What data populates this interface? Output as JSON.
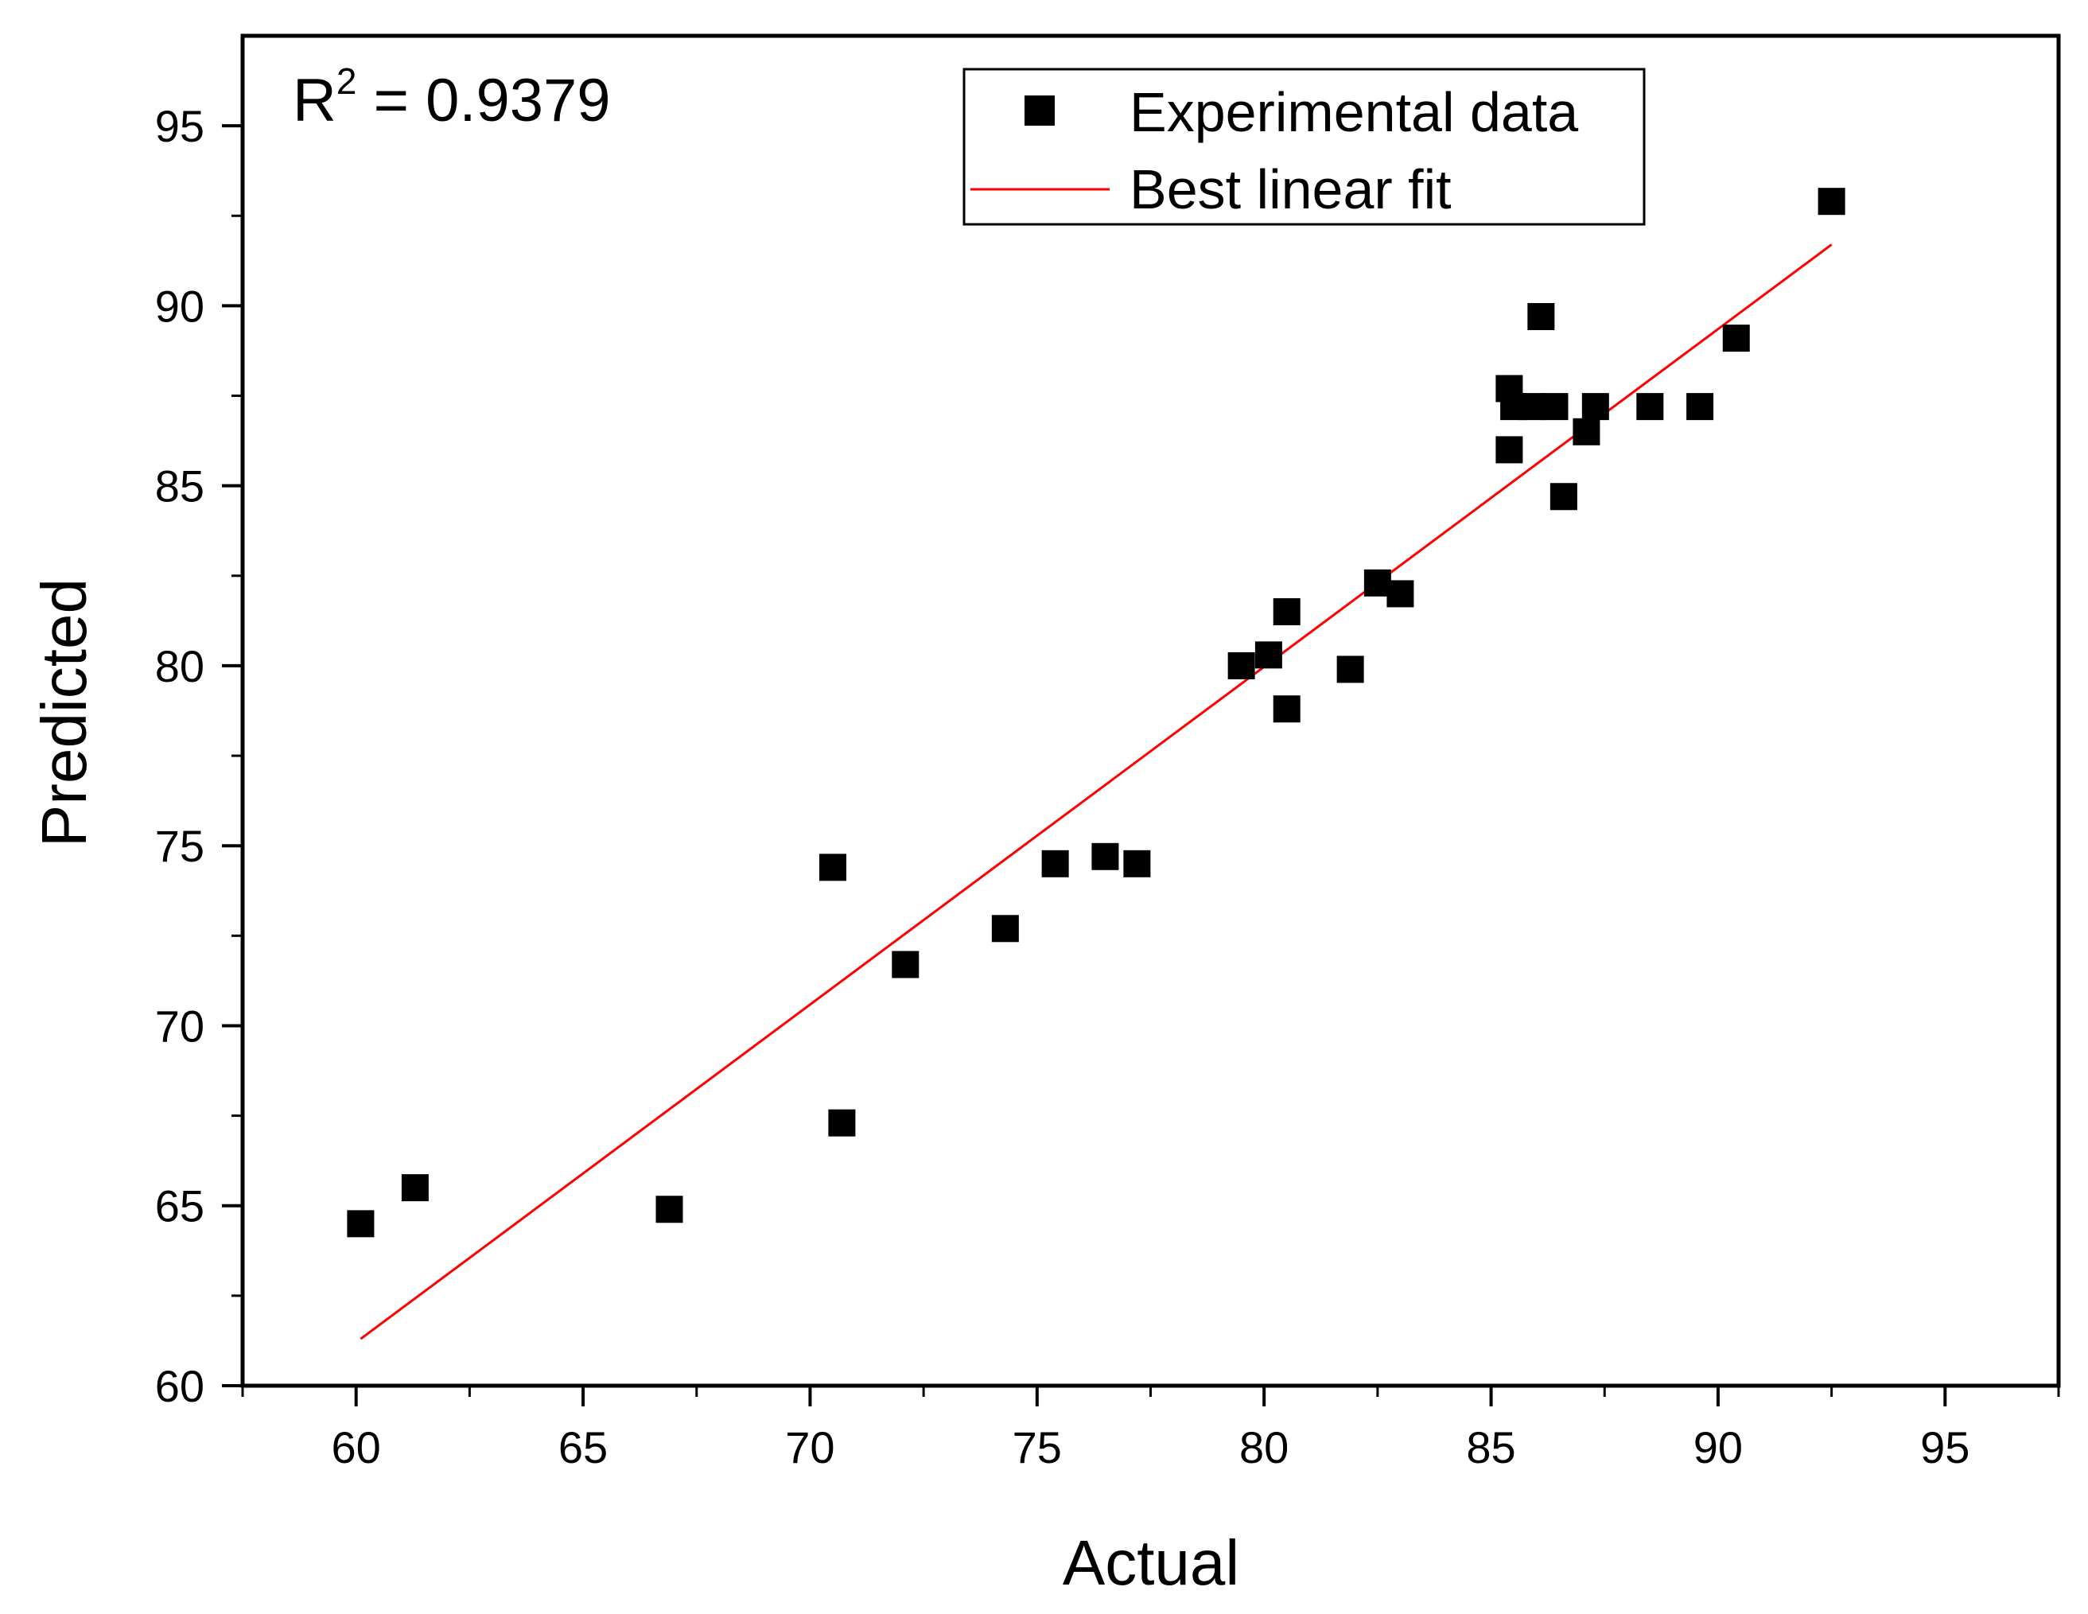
{
  "chart_data": {
    "type": "scatter",
    "title": "",
    "xlabel": "Actual",
    "ylabel": "Predicted",
    "xlim": [
      57.5,
      97.5
    ],
    "ylim": [
      60,
      97.5
    ],
    "xticks": [
      60,
      65,
      70,
      75,
      80,
      85,
      90,
      95
    ],
    "yticks": [
      60,
      65,
      70,
      75,
      80,
      85,
      90,
      95
    ],
    "annotation": {
      "prefix": "R",
      "superscript": "2",
      "value": " = 0.9379"
    },
    "legend": {
      "position": "top-center",
      "entries": [
        {
          "label": "Experimental data",
          "marker": "square"
        },
        {
          "label": "Best linear fit",
          "marker": "line"
        }
      ]
    },
    "series": [
      {
        "name": "Experimental data",
        "color": "#000000",
        "marker": "square",
        "points": [
          [
            60.1,
            64.5
          ],
          [
            61.3,
            65.5
          ],
          [
            66.9,
            64.9
          ],
          [
            70.5,
            74.4
          ],
          [
            70.7,
            67.3
          ],
          [
            72.1,
            71.7
          ],
          [
            74.3,
            72.7
          ],
          [
            75.4,
            74.5
          ],
          [
            76.5,
            74.7
          ],
          [
            77.2,
            74.5
          ],
          [
            79.5,
            80.0
          ],
          [
            80.1,
            80.3
          ],
          [
            80.5,
            81.5
          ],
          [
            80.5,
            78.8
          ],
          [
            81.9,
            79.9
          ],
          [
            82.5,
            82.3
          ],
          [
            83.0,
            82.0
          ],
          [
            85.4,
            87.7
          ],
          [
            85.4,
            86.0
          ],
          [
            85.5,
            87.2
          ],
          [
            85.9,
            87.2
          ],
          [
            86.1,
            89.7
          ],
          [
            86.4,
            87.2
          ],
          [
            86.6,
            84.7
          ],
          [
            87.1,
            86.5
          ],
          [
            87.3,
            87.2
          ],
          [
            88.5,
            87.2
          ],
          [
            89.6,
            87.2
          ],
          [
            90.4,
            89.1
          ],
          [
            92.5,
            92.9
          ]
        ]
      },
      {
        "name": "Best linear fit",
        "color": "#ff0000",
        "type": "line",
        "points": [
          [
            60.1,
            61.3
          ],
          [
            92.5,
            91.7
          ]
        ]
      }
    ]
  }
}
